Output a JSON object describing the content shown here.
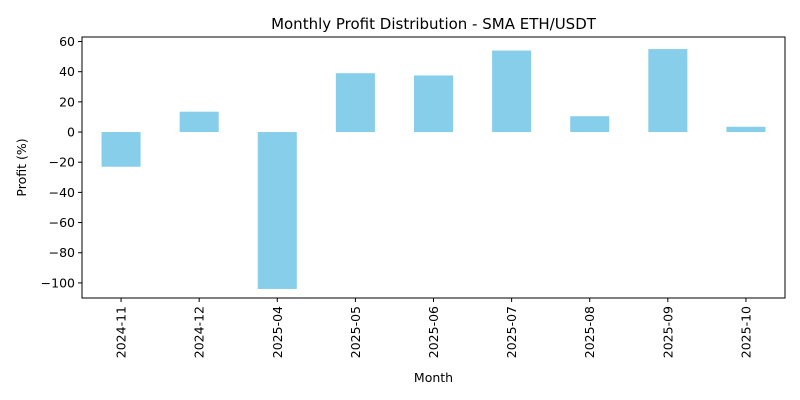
{
  "chart_data": {
    "type": "bar",
    "title": "Monthly Profit Distribution - SMA ETH/USDT",
    "xlabel": "Month",
    "ylabel": "Profit (%)",
    "categories": [
      "2024-11",
      "2024-12",
      "2025-04",
      "2025-05",
      "2025-06",
      "2025-07",
      "2025-08",
      "2025-09",
      "2025-10"
    ],
    "values": [
      -23,
      13.5,
      -104,
      39,
      37.5,
      54,
      10.5,
      55,
      3.5
    ],
    "ylim": [
      -110,
      63
    ],
    "yticks": [
      -100,
      -80,
      -60,
      -40,
      -20,
      0,
      20,
      40,
      60
    ],
    "ytick_labels": [
      "−100",
      "−80",
      "−60",
      "−40",
      "−20",
      "0",
      "20",
      "40",
      "60"
    ],
    "bar_color": "#87ceeb",
    "grid": false,
    "legend": false
  }
}
